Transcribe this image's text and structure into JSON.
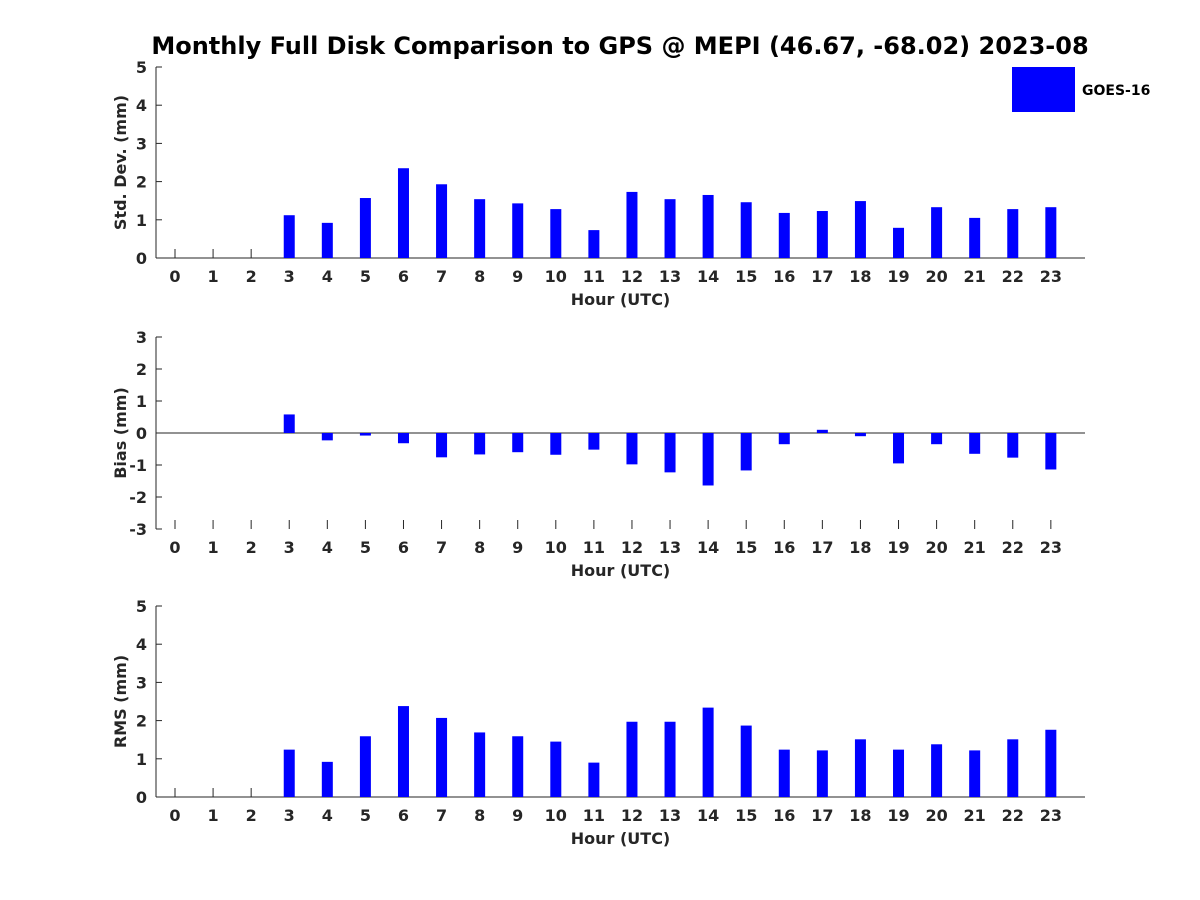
{
  "title": "Monthly Full Disk Comparison to GPS @ MEPI (46.67, -68.02) 2023-08",
  "legend": {
    "label": "GOES-16",
    "position": "top-right"
  },
  "colors": {
    "bar": "#0000ff",
    "axis": "#262626"
  },
  "chart_data": [
    {
      "type": "bar",
      "categories": [
        "0",
        "1",
        "2",
        "3",
        "4",
        "5",
        "6",
        "7",
        "8",
        "9",
        "10",
        "11",
        "12",
        "13",
        "14",
        "15",
        "16",
        "17",
        "18",
        "19",
        "20",
        "21",
        "22",
        "23"
      ],
      "series": [
        {
          "name": "GOES-16",
          "values": [
            null,
            null,
            null,
            1.12,
            0.92,
            1.57,
            2.35,
            1.93,
            1.54,
            1.43,
            1.28,
            0.73,
            1.73,
            1.54,
            1.65,
            1.46,
            1.18,
            1.23,
            1.49,
            0.79,
            1.33,
            1.05,
            1.28,
            1.33
          ]
        }
      ],
      "title": "",
      "xlabel": "Hour (UTC)",
      "ylabel": "Std. Dev. (mm)",
      "ylim": [
        0,
        5
      ],
      "yticks": [
        0,
        1,
        2,
        3,
        4,
        5
      ],
      "grid": false
    },
    {
      "type": "bar",
      "categories": [
        "0",
        "1",
        "2",
        "3",
        "4",
        "5",
        "6",
        "7",
        "8",
        "9",
        "10",
        "11",
        "12",
        "13",
        "14",
        "15",
        "16",
        "17",
        "18",
        "19",
        "20",
        "21",
        "22",
        "23"
      ],
      "series": [
        {
          "name": "GOES-16",
          "values": [
            null,
            null,
            null,
            0.58,
            -0.23,
            -0.08,
            -0.32,
            -0.76,
            -0.67,
            -0.6,
            -0.68,
            -0.52,
            -0.98,
            -1.23,
            -1.64,
            -1.17,
            -0.35,
            0.1,
            -0.1,
            -0.95,
            -0.35,
            -0.65,
            -0.77,
            -1.14
          ]
        }
      ],
      "title": "",
      "xlabel": "Hour (UTC)",
      "ylabel": "Bias (mm)",
      "ylim": [
        -3,
        3
      ],
      "yticks": [
        -3,
        -2,
        -1,
        0,
        1,
        2,
        3
      ],
      "grid": false
    },
    {
      "type": "bar",
      "categories": [
        "0",
        "1",
        "2",
        "3",
        "4",
        "5",
        "6",
        "7",
        "8",
        "9",
        "10",
        "11",
        "12",
        "13",
        "14",
        "15",
        "16",
        "17",
        "18",
        "19",
        "20",
        "21",
        "22",
        "23"
      ],
      "series": [
        {
          "name": "GOES-16",
          "values": [
            null,
            null,
            null,
            1.24,
            0.92,
            1.59,
            2.38,
            2.07,
            1.69,
            1.59,
            1.45,
            0.9,
            1.97,
            1.97,
            2.34,
            1.87,
            1.24,
            1.22,
            1.51,
            1.24,
            1.38,
            1.22,
            1.51,
            1.76
          ]
        }
      ],
      "title": "",
      "xlabel": "Hour (UTC)",
      "ylabel": "RMS (mm)",
      "ylim": [
        0,
        5
      ],
      "yticks": [
        0,
        1,
        2,
        3,
        4,
        5
      ],
      "grid": false
    }
  ]
}
